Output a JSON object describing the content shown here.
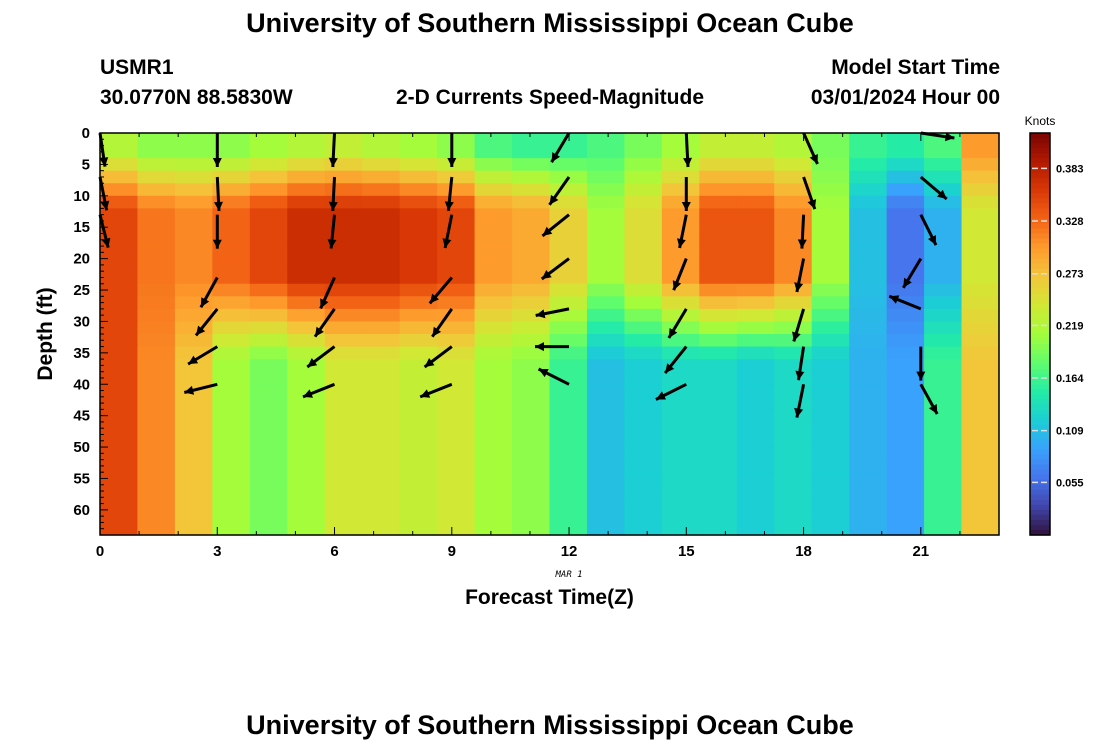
{
  "header": {
    "title": "University of Southern Mississippi Ocean Cube",
    "station": "USMR1",
    "coords": "30.0770N  88.5830W",
    "subtitle": "2-D Currents Speed-Magnitude",
    "model_start_label": "Model Start Time",
    "model_start_value": "03/01/2024 Hour 00",
    "footer_title": "University of Southern Mississippi Ocean Cube"
  },
  "chart_data": {
    "type": "heatmap",
    "title": "2-D Currents Speed-Magnitude",
    "xlabel": "Forecast Time(Z)",
    "ylabel": "Depth (ft)",
    "date_label": "MAR 1",
    "xlim": [
      0,
      23
    ],
    "ylim": [
      0,
      64
    ],
    "y_inverted": true,
    "x_ticks": [
      0,
      3,
      6,
      9,
      12,
      15,
      18,
      21
    ],
    "y_ticks": [
      0,
      5,
      10,
      15,
      20,
      25,
      30,
      35,
      40,
      45,
      50,
      55,
      60
    ],
    "colorbar": {
      "label": "Knots",
      "min": 0.0,
      "max": 0.42,
      "ticks": [
        0.055,
        0.109,
        0.164,
        0.219,
        0.273,
        0.328,
        0.383
      ],
      "colormap": [
        "#30123b",
        "#4145ab",
        "#4675ed",
        "#39a2fc",
        "#1bcfd4",
        "#24eca6",
        "#61fc6c",
        "#a4fc3b",
        "#d1e834",
        "#f3c63a",
        "#fe9b2d",
        "#f36315",
        "#d93806",
        "#b11901",
        "#7a0403"
      ]
    },
    "speed_profiles": [
      {
        "hour": 0,
        "surface": 0.22,
        "mid": 0.35,
        "deep": 0.35
      },
      {
        "hour": 1,
        "surface": 0.2,
        "mid": 0.32,
        "deep": 0.31
      },
      {
        "hour": 2,
        "surface": 0.2,
        "mid": 0.31,
        "deep": 0.27
      },
      {
        "hour": 3,
        "surface": 0.2,
        "mid": 0.33,
        "deep": 0.21
      },
      {
        "hour": 4,
        "surface": 0.21,
        "mid": 0.35,
        "deep": 0.19
      },
      {
        "hour": 5,
        "surface": 0.22,
        "mid": 0.37,
        "deep": 0.21
      },
      {
        "hour": 6,
        "surface": 0.23,
        "mid": 0.37,
        "deep": 0.24
      },
      {
        "hour": 7,
        "surface": 0.22,
        "mid": 0.37,
        "deep": 0.24
      },
      {
        "hour": 8,
        "surface": 0.21,
        "mid": 0.36,
        "deep": 0.23
      },
      {
        "hour": 9,
        "surface": 0.2,
        "mid": 0.35,
        "deep": 0.24
      },
      {
        "hour": 10,
        "surface": 0.17,
        "mid": 0.3,
        "deep": 0.21
      },
      {
        "hour": 11,
        "surface": 0.16,
        "mid": 0.29,
        "deep": 0.2
      },
      {
        "hour": 12,
        "surface": 0.16,
        "mid": 0.26,
        "deep": 0.16
      },
      {
        "hour": 13,
        "surface": 0.17,
        "mid": 0.21,
        "deep": 0.11
      },
      {
        "hour": 14,
        "surface": 0.19,
        "mid": 0.25,
        "deep": 0.12
      },
      {
        "hour": 15,
        "surface": 0.21,
        "mid": 0.3,
        "deep": 0.13
      },
      {
        "hour": 16,
        "surface": 0.23,
        "mid": 0.34,
        "deep": 0.13
      },
      {
        "hour": 17,
        "surface": 0.23,
        "mid": 0.34,
        "deep": 0.12
      },
      {
        "hour": 18,
        "surface": 0.22,
        "mid": 0.31,
        "deep": 0.13
      },
      {
        "hour": 19,
        "surface": 0.19,
        "mid": 0.21,
        "deep": 0.12
      },
      {
        "hour": 20,
        "surface": 0.16,
        "mid": 0.11,
        "deep": 0.1
      },
      {
        "hour": 21,
        "surface": 0.15,
        "mid": 0.06,
        "deep": 0.09
      },
      {
        "hour": 22,
        "surface": 0.17,
        "mid": 0.1,
        "deep": 0.16
      },
      {
        "hour": 23,
        "surface": 0.3,
        "mid": 0.24,
        "deep": 0.27
      }
    ],
    "direction_arrows": [
      {
        "hour": 0,
        "depths": [
          0,
          7,
          13
        ],
        "dirs": [
          [
            0.15,
            1
          ],
          [
            0.2,
            1
          ],
          [
            0.25,
            1
          ]
        ]
      },
      {
        "hour": 3,
        "depths": [
          0,
          7,
          13,
          23,
          28,
          34,
          40
        ],
        "dirs": [
          [
            0,
            1
          ],
          [
            0.05,
            1
          ],
          [
            0,
            1
          ],
          [
            -0.55,
            1
          ],
          [
            -0.8,
            1
          ],
          [
            -1,
            0.6
          ],
          [
            -1,
            0.25
          ]
        ]
      },
      {
        "hour": 6,
        "depths": [
          0,
          7,
          13,
          23,
          28,
          34,
          40
        ],
        "dirs": [
          [
            -0.05,
            1
          ],
          [
            -0.05,
            1
          ],
          [
            -0.1,
            1
          ],
          [
            -0.45,
            1
          ],
          [
            -0.7,
            1
          ],
          [
            -1,
            0.75
          ],
          [
            -1,
            0.4
          ]
        ]
      },
      {
        "hour": 9,
        "depths": [
          0,
          7,
          13,
          23,
          28,
          34,
          40
        ],
        "dirs": [
          [
            0,
            1
          ],
          [
            -0.1,
            1
          ],
          [
            -0.2,
            1
          ],
          [
            -0.85,
            1
          ],
          [
            -0.7,
            1
          ],
          [
            -1,
            0.75
          ],
          [
            -1,
            0.4
          ]
        ]
      },
      {
        "hour": 12,
        "depths": [
          0,
          7,
          13,
          20,
          28,
          34,
          40
        ],
        "dirs": [
          [
            -0.6,
            1
          ],
          [
            -0.7,
            1
          ],
          [
            -1,
            0.8
          ],
          [
            -1,
            0.75
          ],
          [
            -1,
            0.2
          ],
          [
            -1,
            0
          ],
          [
            -1,
            -0.5
          ]
        ]
      },
      {
        "hour": 15,
        "depths": [
          0,
          7,
          13,
          20,
          28,
          34,
          40
        ],
        "dirs": [
          [
            0.05,
            1
          ],
          [
            0,
            1
          ],
          [
            -0.2,
            1
          ],
          [
            -0.4,
            1
          ],
          [
            -0.6,
            1
          ],
          [
            -0.8,
            1
          ],
          [
            -1,
            0.5
          ]
        ]
      },
      {
        "hour": 18,
        "depths": [
          0,
          7,
          13,
          20,
          28,
          34,
          40
        ],
        "dirs": [
          [
            0.45,
            1
          ],
          [
            0.35,
            1
          ],
          [
            -0.05,
            1
          ],
          [
            -0.2,
            1
          ],
          [
            -0.3,
            1
          ],
          [
            -0.15,
            1
          ],
          [
            -0.2,
            1
          ]
        ]
      },
      {
        "hour": 21,
        "depths": [
          0,
          7,
          13,
          20,
          28,
          34,
          40
        ],
        "dirs": [
          [
            1,
            0.15
          ],
          [
            1,
            0.85
          ],
          [
            0.5,
            1
          ],
          [
            -0.6,
            1
          ],
          [
            -1,
            -0.4
          ],
          [
            0,
            1
          ],
          [
            0.55,
            1
          ]
        ]
      }
    ]
  }
}
